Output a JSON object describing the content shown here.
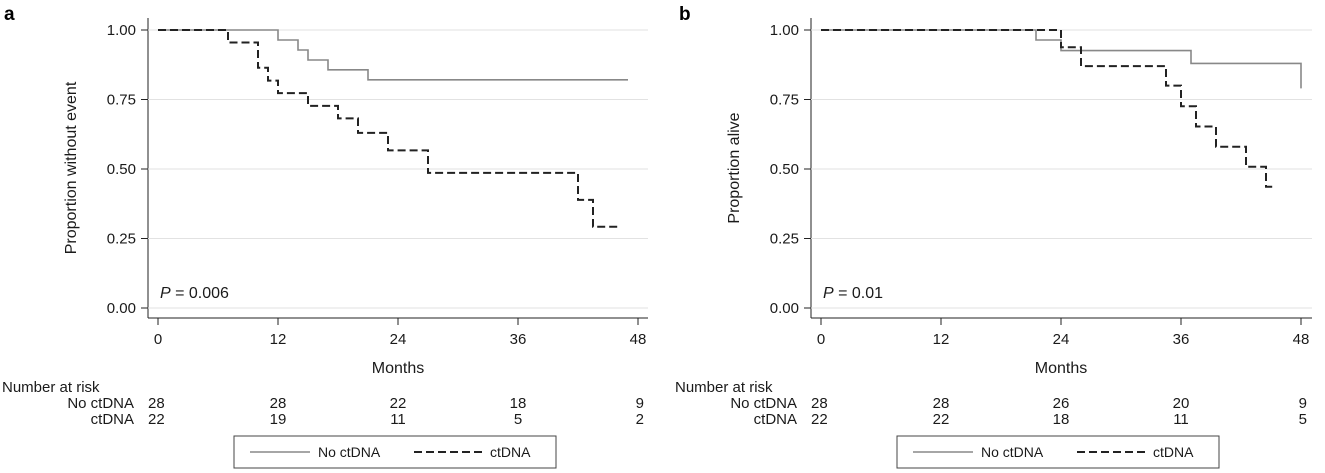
{
  "chart_data": [
    {
      "type": "line",
      "panel_label": "a",
      "xlabel": "Months",
      "ylabel": "Proportion without event",
      "xlim": [
        0,
        48
      ],
      "ylim": [
        0,
        1
      ],
      "x_ticks": [
        "0",
        "12",
        "24",
        "36",
        "48"
      ],
      "y_ticks": [
        "0.00",
        "0.25",
        "0.50",
        "0.75",
        "1.00"
      ],
      "grid": "horizontal",
      "p_label": "P",
      "p_value": " = 0.006",
      "series": [
        {
          "name": "No ctDNA",
          "color": "#888888",
          "style": "solid",
          "points": [
            [
              0,
              1.0
            ],
            [
              12,
              1.0
            ],
            [
              12,
              0.964
            ],
            [
              14,
              0.964
            ],
            [
              14,
              0.928
            ],
            [
              15,
              0.928
            ],
            [
              15,
              0.892
            ],
            [
              17,
              0.892
            ],
            [
              17,
              0.857
            ],
            [
              21,
              0.857
            ],
            [
              21,
              0.821
            ],
            [
              47,
              0.821
            ]
          ]
        },
        {
          "name": "ctDNA",
          "color": "#222222",
          "style": "dashed",
          "points": [
            [
              0,
              1.0
            ],
            [
              7,
              1.0
            ],
            [
              7,
              0.955
            ],
            [
              10,
              0.955
            ],
            [
              10,
              0.864
            ],
            [
              11,
              0.864
            ],
            [
              11,
              0.818
            ],
            [
              12,
              0.818
            ],
            [
              12,
              0.773
            ],
            [
              15,
              0.773
            ],
            [
              15,
              0.727
            ],
            [
              18,
              0.727
            ],
            [
              18,
              0.682
            ],
            [
              20,
              0.682
            ],
            [
              20,
              0.63
            ],
            [
              23,
              0.63
            ],
            [
              23,
              0.567
            ],
            [
              27,
              0.567
            ],
            [
              27,
              0.486
            ],
            [
              42,
              0.486
            ],
            [
              42,
              0.389
            ],
            [
              43.5,
              0.389
            ],
            [
              43.5,
              0.292
            ],
            [
              46,
              0.292
            ]
          ]
        }
      ],
      "risk_table": {
        "title": "Number at risk",
        "rows": [
          {
            "label": "No ctDNA",
            "values": [
              "28",
              "28",
              "22",
              "18",
              "9"
            ]
          },
          {
            "label": "ctDNA",
            "values": [
              "22",
              "19",
              "11",
              "5",
              "2"
            ]
          }
        ]
      },
      "legend": {
        "placement": "bottom",
        "entries": [
          "No ctDNA",
          "ctDNA"
        ]
      }
    },
    {
      "type": "line",
      "panel_label": "b",
      "xlabel": "Months",
      "ylabel": "Proportion alive",
      "xlim": [
        0,
        48
      ],
      "ylim": [
        0,
        1
      ],
      "x_ticks": [
        "0",
        "12",
        "24",
        "36",
        "48"
      ],
      "y_ticks": [
        "0.00",
        "0.25",
        "0.50",
        "0.75",
        "1.00"
      ],
      "grid": "horizontal",
      "p_label": "P",
      "p_value": " = 0.01",
      "series": [
        {
          "name": "No ctDNA",
          "color": "#888888",
          "style": "solid",
          "points": [
            [
              0,
              1.0
            ],
            [
              21.5,
              1.0
            ],
            [
              21.5,
              0.964
            ],
            [
              24,
              0.964
            ],
            [
              24,
              0.926
            ],
            [
              37,
              0.926
            ],
            [
              37,
              0.88
            ],
            [
              48,
              0.88
            ],
            [
              48,
              0.79
            ]
          ]
        },
        {
          "name": "ctDNA",
          "color": "#222222",
          "style": "dashed",
          "points": [
            [
              0,
              1.0
            ],
            [
              24,
              1.0
            ],
            [
              24,
              0.938
            ],
            [
              26,
              0.938
            ],
            [
              26,
              0.87
            ],
            [
              34.5,
              0.87
            ],
            [
              34.5,
              0.8
            ],
            [
              36,
              0.8
            ],
            [
              36,
              0.726
            ],
            [
              37.5,
              0.726
            ],
            [
              37.5,
              0.653
            ],
            [
              39.5,
              0.653
            ],
            [
              39.5,
              0.58
            ],
            [
              42.5,
              0.58
            ],
            [
              42.5,
              0.508
            ],
            [
              44.5,
              0.508
            ],
            [
              44.5,
              0.436
            ],
            [
              45.5,
              0.436
            ]
          ]
        }
      ],
      "risk_table": {
        "title": "Number at risk",
        "rows": [
          {
            "label": "No ctDNA",
            "values": [
              "28",
              "28",
              "26",
              "20",
              "9"
            ]
          },
          {
            "label": "ctDNA",
            "values": [
              "22",
              "22",
              "18",
              "11",
              "5"
            ]
          }
        ]
      },
      "legend": {
        "placement": "bottom",
        "entries": [
          "No ctDNA",
          "ctDNA"
        ]
      }
    }
  ]
}
